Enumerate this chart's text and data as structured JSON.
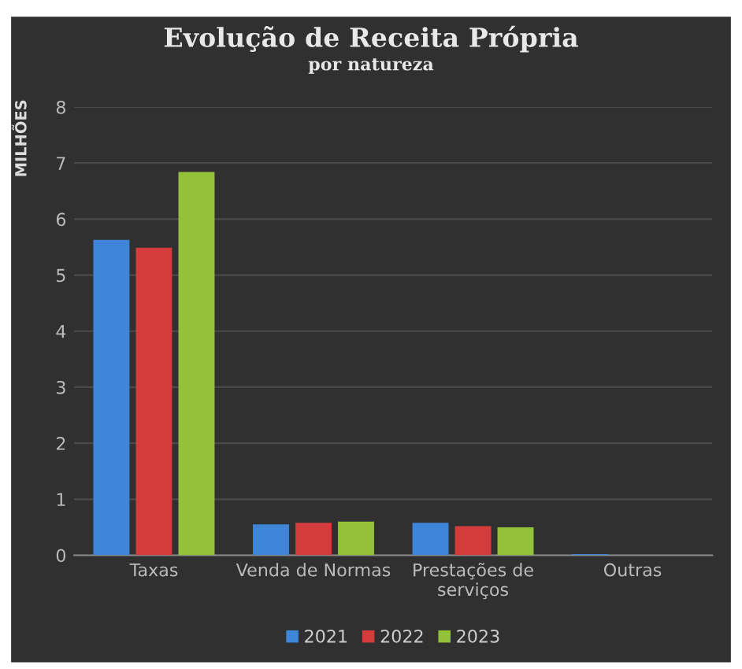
{
  "chart_data": {
    "type": "bar",
    "title": "Evolução de Receita Própria",
    "subtitle": "por natureza",
    "ylabel": "MILHÕES",
    "categories": [
      "Taxas",
      "Venda de Normas",
      "Prestações de\nserviços",
      "Outras"
    ],
    "series": [
      {
        "name": "2021",
        "color": "#3f86d8",
        "values": [
          5.63,
          0.55,
          0.58,
          0.02
        ]
      },
      {
        "name": "2022",
        "color": "#d43c3c",
        "values": [
          5.49,
          0.58,
          0.52,
          null
        ]
      },
      {
        "name": "2023",
        "color": "#93c23a",
        "values": [
          6.84,
          0.6,
          0.5,
          null
        ]
      }
    ],
    "ylim": [
      0,
      8
    ],
    "yticks": [
      0,
      1,
      2,
      3,
      4,
      5,
      6,
      7,
      8
    ],
    "grid": "y",
    "legend": "bottom"
  }
}
